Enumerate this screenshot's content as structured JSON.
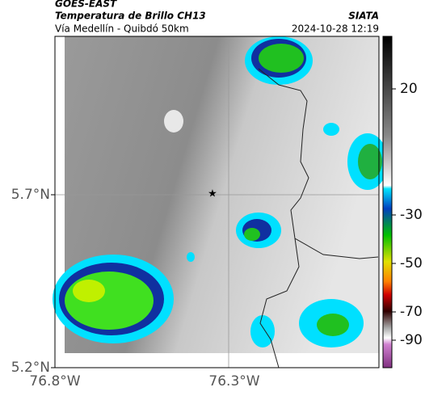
{
  "header": {
    "satellite": "GOES-EAST",
    "product": "Temperatura de Brillo CH13",
    "region": "Vía Medellín - Quibdó 50km",
    "source": "SIATA",
    "timestamp": "2024-10-28 12:19"
  },
  "axes": {
    "lat_labels": [
      "5.7°N",
      "5.2°N"
    ],
    "lon_labels": [
      "76.8°W",
      "76.3°W"
    ]
  },
  "colorbar": {
    "ticks": [
      "20",
      "-30",
      "-50",
      "-70",
      "-90"
    ]
  }
}
